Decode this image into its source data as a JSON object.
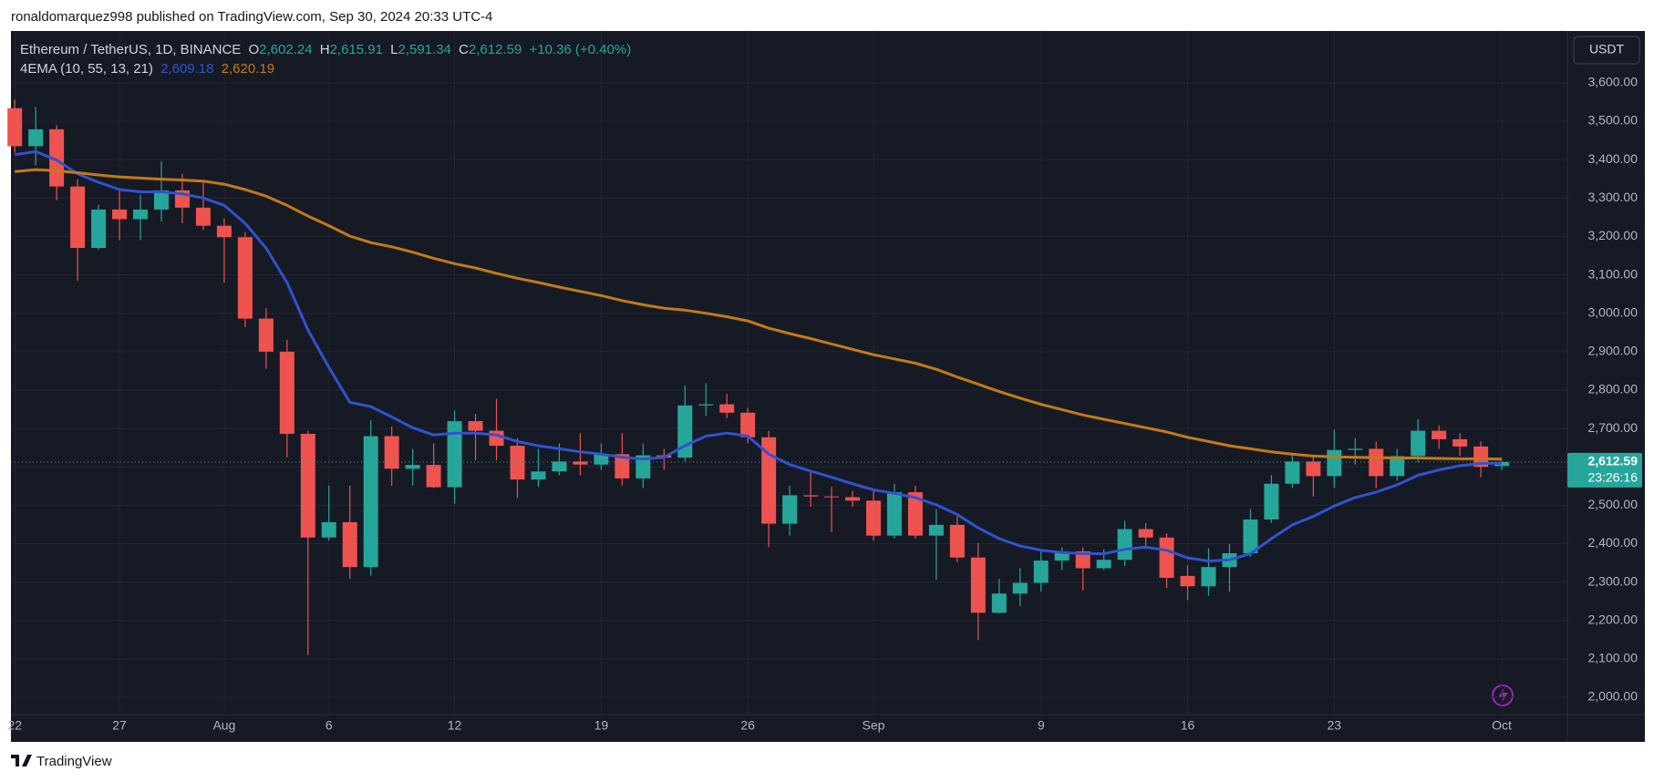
{
  "header": {
    "publisher": "ronaldomarquez998 published on TradingView.com, Sep 30, 2024 20:33 UTC-4"
  },
  "footer": {
    "brand": "TradingView"
  },
  "chart_data": {
    "type": "candlestick",
    "legend": {
      "symbol": "Ethereum / TetherUS, 1D, BINANCE",
      "open_key": "O",
      "open": "2,602.24",
      "high_key": "H",
      "high": "2,615.91",
      "low_key": "L",
      "low": "2,591.34",
      "close_key": "C",
      "close": "2,612.59",
      "change": "+10.36 (+0.40%)",
      "indicator": "4EMA (10, 55, 13, 21)",
      "ema_a": "2,609.18",
      "ema_b": "2,620.19"
    },
    "currency": "USDT",
    "price_label": "2,612.59",
    "countdown": "23:26:16",
    "categories": [
      "22",
      null,
      null,
      null,
      null,
      "27",
      null,
      null,
      null,
      null,
      "Aug",
      null,
      null,
      null,
      null,
      "6",
      null,
      null,
      null,
      null,
      null,
      "12",
      null,
      null,
      null,
      null,
      null,
      null,
      "19",
      null,
      null,
      null,
      null,
      null,
      null,
      "26",
      null,
      null,
      null,
      null,
      null,
      "Sep",
      null,
      null,
      null,
      null,
      null,
      null,
      null,
      "9",
      null,
      null,
      null,
      null,
      null,
      null,
      "16",
      null,
      null,
      null,
      null,
      null,
      null,
      "23",
      null,
      null,
      null,
      null,
      null,
      null,
      null,
      "Oct"
    ],
    "candles": {
      "up_color": "#26a69a",
      "down_color": "#ef5350",
      "open": [
        3534,
        3435,
        3479,
        3330,
        3170,
        3270,
        3245,
        3270,
        3320,
        3275,
        3228,
        3198,
        2986,
        2900,
        2686,
        2416,
        2456,
        2339,
        2680,
        2595,
        2605,
        2547,
        2719,
        2694,
        2655,
        2567,
        2588,
        2614,
        2606,
        2633,
        2570,
        2630,
        2624,
        2760,
        2763,
        2741,
        2677,
        2452,
        2526,
        2523,
        2521,
        2512,
        2421,
        2534,
        2421,
        2449,
        2364,
        2220,
        2270,
        2298,
        2356,
        2380,
        2336,
        2358,
        2438,
        2416,
        2316,
        2289,
        2339,
        2375,
        2463,
        2556,
        2614,
        2576,
        2644,
        2647,
        2576,
        2628,
        2694,
        2672,
        2653,
        2602.24
      ],
      "high": [
        3556,
        3537,
        3490,
        3349,
        3283,
        3322,
        3308,
        3396,
        3363,
        3344,
        3247,
        3211,
        3013,
        2931,
        2694,
        2551,
        2551,
        2721,
        2705,
        2647,
        2661,
        2746,
        2738,
        2777,
        2675,
        2647,
        2661,
        2688,
        2661,
        2688,
        2661,
        2647,
        2812,
        2818,
        2790,
        2754,
        2694,
        2551,
        2592,
        2548,
        2537,
        2537,
        2556,
        2551,
        2490,
        2471,
        2402,
        2308,
        2336,
        2386,
        2391,
        2391,
        2386,
        2460,
        2454,
        2427,
        2344,
        2388,
        2399,
        2490,
        2578,
        2633,
        2628,
        2697,
        2675,
        2666,
        2647,
        2724,
        2708,
        2688,
        2666,
        2615.91
      ],
      "low": [
        3418,
        3385,
        3294,
        3085,
        3165,
        3190,
        3190,
        3239,
        3234,
        3217,
        3080,
        2964,
        2856,
        2625,
        2110,
        2408,
        2308,
        2317,
        2551,
        2551,
        2545,
        2504,
        2617,
        2617,
        2518,
        2548,
        2578,
        2578,
        2592,
        2551,
        2545,
        2592,
        2614,
        2733,
        2727,
        2661,
        2391,
        2421,
        2496,
        2430,
        2496,
        2408,
        2413,
        2413,
        2306,
        2352,
        2149,
        2218,
        2237,
        2275,
        2331,
        2278,
        2331,
        2342,
        2386,
        2284,
        2253,
        2264,
        2275,
        2366,
        2454,
        2545,
        2523,
        2545,
        2606,
        2545,
        2564,
        2611,
        2647,
        2628,
        2573,
        2591.34
      ],
      "close": [
        3435,
        3479,
        3330,
        3170,
        3270,
        3245,
        3270,
        3320,
        3275,
        3228,
        3198,
        2986,
        2900,
        2686,
        2416,
        2456,
        2339,
        2680,
        2595,
        2605,
        2547,
        2719,
        2694,
        2655,
        2567,
        2588,
        2614,
        2606,
        2633,
        2570,
        2630,
        2624,
        2760,
        2763,
        2741,
        2677,
        2452,
        2526,
        2523,
        2521,
        2512,
        2421,
        2534,
        2421,
        2449,
        2364,
        2220,
        2270,
        2298,
        2356,
        2380,
        2336,
        2358,
        2438,
        2416,
        2311,
        2289,
        2339,
        2375,
        2463,
        2556,
        2614,
        2576,
        2644,
        2647,
        2576,
        2628,
        2694,
        2672,
        2653,
        2600,
        2612.59
      ]
    },
    "lines": [
      {
        "color": "#3152d0",
        "values": [
          3413,
          3421,
          3399,
          3363,
          3341,
          3322,
          3316,
          3316,
          3311,
          3300,
          3281,
          3234,
          3170,
          3080,
          2956,
          2859,
          2768,
          2757,
          2730,
          2702,
          2683,
          2688,
          2688,
          2683,
          2666,
          2655,
          2647,
          2639,
          2633,
          2625,
          2620,
          2625,
          2655,
          2680,
          2688,
          2680,
          2633,
          2606,
          2589,
          2573,
          2556,
          2540,
          2531,
          2520,
          2501,
          2476,
          2441,
          2413,
          2394,
          2383,
          2377,
          2374,
          2374,
          2385,
          2391,
          2383,
          2363,
          2355,
          2358,
          2374,
          2413,
          2449,
          2471,
          2498,
          2520,
          2534,
          2553,
          2578,
          2592,
          2603,
          2609,
          2609.18
        ]
      },
      {
        "color": "#c47a16",
        "values": [
          3369,
          3374,
          3371,
          3366,
          3360,
          3355,
          3352,
          3349,
          3347,
          3344,
          3336,
          3322,
          3305,
          3281,
          3253,
          3228,
          3201,
          3184,
          3173,
          3159,
          3143,
          3129,
          3118,
          3104,
          3091,
          3080,
          3068,
          3057,
          3046,
          3033,
          3022,
          3013,
          3008,
          3000,
          2991,
          2980,
          2961,
          2947,
          2934,
          2920,
          2906,
          2892,
          2881,
          2870,
          2854,
          2834,
          2815,
          2796,
          2779,
          2763,
          2749,
          2735,
          2724,
          2713,
          2702,
          2691,
          2677,
          2666,
          2655,
          2647,
          2639,
          2633,
          2628,
          2626,
          2625,
          2624,
          2623,
          2623,
          2622,
          2621,
          2621,
          2620.19
        ]
      }
    ],
    "ylim": [
      1955,
      3735
    ],
    "yticks": [
      {
        "value": 2000,
        "label": "2,000.00"
      },
      {
        "value": 2100,
        "label": "2,100.00"
      },
      {
        "value": 2200,
        "label": "2,200.00"
      },
      {
        "value": 2300,
        "label": "2,300.00"
      },
      {
        "value": 2400,
        "label": "2,400.00"
      },
      {
        "value": 2500,
        "label": "2,500.00"
      },
      {
        "value": 2600,
        "label": "2,600.00"
      },
      {
        "value": 2700,
        "label": "2,700.00"
      },
      {
        "value": 2800,
        "label": "2,800.00"
      },
      {
        "value": 2900,
        "label": "2,900.00"
      },
      {
        "value": 3000,
        "label": "3,000.00"
      },
      {
        "value": 3100,
        "label": "3,100.00"
      },
      {
        "value": 3200,
        "label": "3,200.00"
      },
      {
        "value": 3300,
        "label": "3,300.00"
      },
      {
        "value": 3400,
        "label": "3,400.00"
      },
      {
        "value": 3500,
        "label": "3,500.00"
      },
      {
        "value": 3600,
        "label": "3,600.00"
      }
    ],
    "grid": true
  }
}
